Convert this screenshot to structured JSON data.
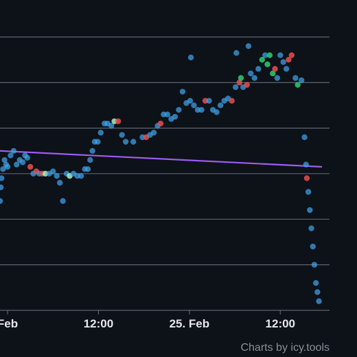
{
  "credit": "Charts by icy.tools",
  "colors": {
    "background": "#0d1118",
    "grid": "#5f6470",
    "trend": "#9f5cf0",
    "neutral": "#3fa4ea",
    "sale_red": "#e8504f",
    "sale_green": "#2ecc71",
    "sale_mint": "#a8f0c0"
  },
  "chart_data": {
    "type": "scatter",
    "title": "",
    "xlabel": "",
    "ylabel": "",
    "x_unit": "hours",
    "x_ticks": [
      {
        "label": "Feb",
        "x": 0
      },
      {
        "label": "12:00",
        "x": 12
      },
      {
        "label": "25. Feb",
        "x": 24
      },
      {
        "label": "12:00",
        "x": 36
      }
    ],
    "xlim": [
      -1,
      42.5
    ],
    "ylim": [
      0,
      6.3
    ],
    "y_gridlines": [
      0,
      1,
      2,
      3,
      4,
      5,
      6
    ],
    "y_tick_labels_visible": false,
    "trend_line": {
      "x": [
        -1,
        41.5
      ],
      "y": [
        3.5,
        3.15
      ]
    },
    "points": [
      {
        "x": -1.0,
        "y": 2.4,
        "c": "n"
      },
      {
        "x": -0.9,
        "y": 2.7,
        "c": "n"
      },
      {
        "x": -0.8,
        "y": 2.9,
        "c": "n"
      },
      {
        "x": -0.6,
        "y": 3.1,
        "c": "n"
      },
      {
        "x": -0.4,
        "y": 3.3,
        "c": "n"
      },
      {
        "x": -0.2,
        "y": 3.2,
        "c": "n"
      },
      {
        "x": 0.0,
        "y": 3.15,
        "c": "n"
      },
      {
        "x": 0.4,
        "y": 3.4,
        "c": "n"
      },
      {
        "x": 0.8,
        "y": 3.5,
        "c": "n"
      },
      {
        "x": 1.2,
        "y": 3.2,
        "c": "n"
      },
      {
        "x": 1.6,
        "y": 3.3,
        "c": "n"
      },
      {
        "x": 2.0,
        "y": 3.25,
        "c": "n"
      },
      {
        "x": 2.3,
        "y": 3.4,
        "c": "n"
      },
      {
        "x": 2.6,
        "y": 3.35,
        "c": "n"
      },
      {
        "x": 3.0,
        "y": 3.15,
        "c": "r"
      },
      {
        "x": 3.4,
        "y": 3.0,
        "c": "n"
      },
      {
        "x": 3.8,
        "y": 3.05,
        "c": "r"
      },
      {
        "x": 4.2,
        "y": 3.0,
        "c": "n"
      },
      {
        "x": 4.6,
        "y": 3.0,
        "c": "r"
      },
      {
        "x": 5.0,
        "y": 3.0,
        "c": "m"
      },
      {
        "x": 5.5,
        "y": 3.0,
        "c": "n"
      },
      {
        "x": 6.0,
        "y": 3.05,
        "c": "n"
      },
      {
        "x": 6.5,
        "y": 2.95,
        "c": "n"
      },
      {
        "x": 6.9,
        "y": 2.8,
        "c": "n"
      },
      {
        "x": 7.3,
        "y": 2.4,
        "c": "n"
      },
      {
        "x": 7.8,
        "y": 3.0,
        "c": "n"
      },
      {
        "x": 8.2,
        "y": 2.95,
        "c": "m"
      },
      {
        "x": 8.7,
        "y": 3.0,
        "c": "n"
      },
      {
        "x": 9.2,
        "y": 2.95,
        "c": "n"
      },
      {
        "x": 9.7,
        "y": 2.95,
        "c": "n"
      },
      {
        "x": 10.2,
        "y": 3.1,
        "c": "n"
      },
      {
        "x": 10.6,
        "y": 3.1,
        "c": "n"
      },
      {
        "x": 10.9,
        "y": 3.3,
        "c": "n"
      },
      {
        "x": 11.2,
        "y": 3.5,
        "c": "n"
      },
      {
        "x": 11.5,
        "y": 3.7,
        "c": "n"
      },
      {
        "x": 11.9,
        "y": 3.7,
        "c": "n"
      },
      {
        "x": 12.3,
        "y": 3.9,
        "c": "n"
      },
      {
        "x": 12.8,
        "y": 4.1,
        "c": "n"
      },
      {
        "x": 13.2,
        "y": 4.1,
        "c": "n"
      },
      {
        "x": 13.7,
        "y": 4.05,
        "c": "n"
      },
      {
        "x": 14.1,
        "y": 4.15,
        "c": "m"
      },
      {
        "x": 14.6,
        "y": 4.15,
        "c": "r"
      },
      {
        "x": 15.1,
        "y": 3.85,
        "c": "n"
      },
      {
        "x": 15.6,
        "y": 3.7,
        "c": "n"
      },
      {
        "x": 16.6,
        "y": 3.7,
        "c": "n"
      },
      {
        "x": 17.8,
        "y": 3.8,
        "c": "n"
      },
      {
        "x": 18.3,
        "y": 3.8,
        "c": "r"
      },
      {
        "x": 18.8,
        "y": 3.85,
        "c": "n"
      },
      {
        "x": 19.3,
        "y": 3.9,
        "c": "n"
      },
      {
        "x": 19.8,
        "y": 4.05,
        "c": "n"
      },
      {
        "x": 20.2,
        "y": 4.1,
        "c": "r"
      },
      {
        "x": 20.6,
        "y": 4.3,
        "c": "n"
      },
      {
        "x": 21.1,
        "y": 4.3,
        "c": "n"
      },
      {
        "x": 21.6,
        "y": 4.2,
        "c": "n"
      },
      {
        "x": 22.1,
        "y": 4.25,
        "c": "n"
      },
      {
        "x": 22.6,
        "y": 4.4,
        "c": "n"
      },
      {
        "x": 23.1,
        "y": 4.8,
        "c": "n"
      },
      {
        "x": 23.6,
        "y": 4.55,
        "c": "n"
      },
      {
        "x": 24.1,
        "y": 4.6,
        "c": "n"
      },
      {
        "x": 24.6,
        "y": 4.5,
        "c": "n"
      },
      {
        "x": 25.1,
        "y": 4.4,
        "c": "n"
      },
      {
        "x": 25.6,
        "y": 4.4,
        "c": "n"
      },
      {
        "x": 26.1,
        "y": 4.6,
        "c": "r"
      },
      {
        "x": 26.6,
        "y": 4.6,
        "c": "n"
      },
      {
        "x": 27.1,
        "y": 4.4,
        "c": "n"
      },
      {
        "x": 27.6,
        "y": 4.35,
        "c": "n"
      },
      {
        "x": 28.1,
        "y": 4.5,
        "c": "n"
      },
      {
        "x": 28.6,
        "y": 4.6,
        "c": "n"
      },
      {
        "x": 29.1,
        "y": 4.65,
        "c": "n"
      },
      {
        "x": 29.6,
        "y": 4.6,
        "c": "r"
      },
      {
        "x": 30.1,
        "y": 4.9,
        "c": "n"
      },
      {
        "x": 30.6,
        "y": 5.0,
        "c": "r"
      },
      {
        "x": 31.1,
        "y": 4.9,
        "c": "n"
      },
      {
        "x": 31.6,
        "y": 4.95,
        "c": "r"
      },
      {
        "x": 32.1,
        "y": 5.2,
        "c": "n"
      },
      {
        "x": 32.6,
        "y": 5.1,
        "c": "n"
      },
      {
        "x": 33.1,
        "y": 5.3,
        "c": "n"
      },
      {
        "x": 33.6,
        "y": 5.5,
        "c": "g"
      },
      {
        "x": 34.0,
        "y": 5.6,
        "c": "n"
      },
      {
        "x": 34.3,
        "y": 5.4,
        "c": "g"
      },
      {
        "x": 34.6,
        "y": 5.6,
        "c": "g"
      },
      {
        "x": 35.0,
        "y": 5.2,
        "c": "g"
      },
      {
        "x": 35.3,
        "y": 5.3,
        "c": "r"
      },
      {
        "x": 35.6,
        "y": 5.1,
        "c": "n"
      },
      {
        "x": 36.0,
        "y": 5.6,
        "c": "n"
      },
      {
        "x": 36.4,
        "y": 5.45,
        "c": "n"
      },
      {
        "x": 36.8,
        "y": 5.3,
        "c": "n"
      },
      {
        "x": 37.1,
        "y": 5.5,
        "c": "r"
      },
      {
        "x": 37.5,
        "y": 5.6,
        "c": "r"
      },
      {
        "x": 38.0,
        "y": 5.1,
        "c": "n"
      },
      {
        "x": 38.3,
        "y": 4.95,
        "c": "g"
      },
      {
        "x": 38.8,
        "y": 5.05,
        "c": "n"
      },
      {
        "x": 39.2,
        "y": 3.8,
        "c": "n"
      },
      {
        "x": 39.4,
        "y": 3.2,
        "c": "n"
      },
      {
        "x": 39.5,
        "y": 2.9,
        "c": "r"
      },
      {
        "x": 39.7,
        "y": 2.6,
        "c": "n"
      },
      {
        "x": 39.9,
        "y": 2.2,
        "c": "n"
      },
      {
        "x": 40.1,
        "y": 1.8,
        "c": "n"
      },
      {
        "x": 40.3,
        "y": 1.4,
        "c": "n"
      },
      {
        "x": 40.5,
        "y": 1.0,
        "c": "n"
      },
      {
        "x": 40.7,
        "y": 0.6,
        "c": "n"
      },
      {
        "x": 40.9,
        "y": 0.4,
        "c": "n"
      },
      {
        "x": 41.1,
        "y": 0.2,
        "c": "n"
      },
      {
        "x": 30.2,
        "y": 5.65,
        "c": "n"
      },
      {
        "x": 31.8,
        "y": 5.8,
        "c": "n"
      },
      {
        "x": 30.8,
        "y": 5.1,
        "c": "g"
      },
      {
        "x": 24.2,
        "y": 5.55,
        "c": "n"
      }
    ]
  }
}
